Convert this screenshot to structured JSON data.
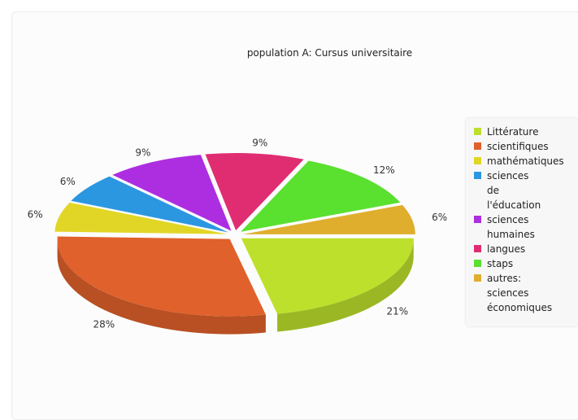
{
  "chart_data": {
    "type": "pie",
    "title": "population A: Cursus universitaire",
    "slices": [
      {
        "label": "Littérature",
        "value": 21,
        "display": "21%",
        "color": "#bde02c"
      },
      {
        "label": "scientifiques",
        "value": 28,
        "display": "28%",
        "color": "#e0612b"
      },
      {
        "label": "mathématiques",
        "value": 6,
        "display": "6%",
        "color": "#e1d626"
      },
      {
        "label": "sciences de l'éducation",
        "value": 6,
        "display": "6%",
        "color": "#2b97e0"
      },
      {
        "label": "sciences humaines",
        "value": 9,
        "display": "9%",
        "color": "#ad2ee0"
      },
      {
        "label": "langues",
        "value": 9,
        "display": "9%",
        "color": "#e02d72"
      },
      {
        "label": "staps",
        "value": 12,
        "display": "12%",
        "color": "#5ae02f"
      },
      {
        "label": "autres: sciences économiques",
        "value": 6,
        "display": "6%",
        "color": "#e0ae2d"
      }
    ],
    "legend_lines": [
      "Littérature",
      "scientifiques",
      "mathématiques",
      "sciences\nde\nl'éducation",
      "sciences\nhumaines",
      "langues",
      "staps",
      "autres:\nsciences\néconomiques"
    ],
    "legend_position": "right"
  }
}
